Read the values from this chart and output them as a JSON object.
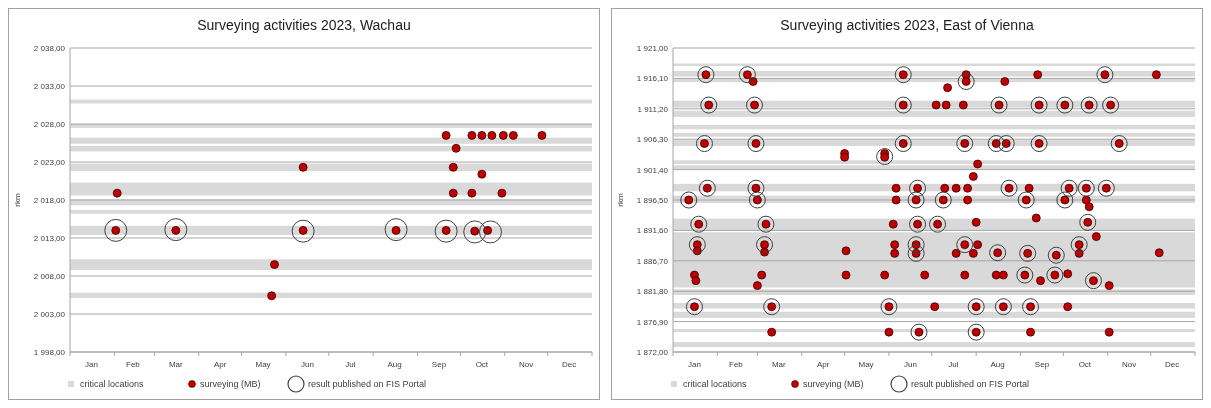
{
  "chart_data": [
    {
      "type": "scatter",
      "title": "Surveying activities 2023, Wachau",
      "ylabel": "rkm",
      "grid": "y",
      "legend": "bottom",
      "marker": "circle",
      "xlim": [
        "2023-01-01",
        "2024-01-01"
      ],
      "xticks": [
        {
          "value": "2023-01-01",
          "label": null
        },
        {
          "value": "2023-02-01",
          "label": null
        },
        {
          "value": "2023-03-01",
          "label": null
        },
        {
          "value": "2023-04-01",
          "label": null
        },
        {
          "value": "2023-05-01",
          "label": null
        },
        {
          "value": "2023-06-01",
          "label": null
        },
        {
          "value": "2023-07-01",
          "label": null
        },
        {
          "value": "2023-08-01",
          "label": null
        },
        {
          "value": "2023-09-01",
          "label": null
        },
        {
          "value": "2023-10-01",
          "label": null
        },
        {
          "value": "2023-11-01",
          "label": null
        },
        {
          "value": "2023-12-01",
          "label": null
        },
        {
          "value": "2024-01-01",
          "label": null
        },
        {
          "value": "2023-01-16",
          "label": "Jan"
        },
        {
          "value": "2023-02-14",
          "label": "Feb"
        },
        {
          "value": "2023-03-16",
          "label": "Mar"
        },
        {
          "value": "2023-04-16",
          "label": "Apr"
        },
        {
          "value": "2023-05-16",
          "label": "May"
        },
        {
          "value": "2023-06-16",
          "label": "Jun"
        },
        {
          "value": "2023-07-16",
          "label": "Jul"
        },
        {
          "value": "2023-08-16",
          "label": "Aug"
        },
        {
          "value": "2023-09-16",
          "label": "Sep"
        },
        {
          "value": "2023-10-16",
          "label": "Oct"
        },
        {
          "value": "2023-11-16",
          "label": "Nov"
        },
        {
          "value": "2023-12-16",
          "label": "Dec"
        }
      ],
      "ylim": [
        1998,
        2038
      ],
      "yticks": [
        {
          "value": 1998,
          "label": "1 998,00"
        },
        {
          "value": 2003,
          "label": "2 003,00"
        },
        {
          "value": 2008,
          "label": "2 008,00"
        },
        {
          "value": 2013,
          "label": "2 013,00"
        },
        {
          "value": 2018,
          "label": "2 018,00"
        },
        {
          "value": 2023,
          "label": "2 023,00"
        },
        {
          "value": 2028,
          "label": "2 028,00"
        },
        {
          "value": 2033,
          "label": "2 033,00"
        },
        {
          "value": 2038,
          "label": "2 038,00"
        }
      ],
      "bands": [
        {
          "axis": "y",
          "from": 2030.7,
          "to": 2031.2,
          "label": "critical locations",
          "color": "#d9d9d9"
        },
        {
          "axis": "y",
          "from": 2027.5,
          "to": 2028.0,
          "color": "#d9d9d9"
        },
        {
          "axis": "y",
          "from": 2025.4,
          "to": 2026.2,
          "color": "#d9d9d9"
        },
        {
          "axis": "y",
          "from": 2024.4,
          "to": 2025.1,
          "color": "#d9d9d9"
        },
        {
          "axis": "y",
          "from": 2021.8,
          "to": 2022.8,
          "color": "#d9d9d9"
        },
        {
          "axis": "y",
          "from": 2018.6,
          "to": 2020.3,
          "color": "#d9d9d9"
        },
        {
          "axis": "y",
          "from": 2017.3,
          "to": 2018.1,
          "color": "#d9d9d9"
        },
        {
          "axis": "y",
          "from": 2016.2,
          "to": 2016.7,
          "color": "#d9d9d9"
        },
        {
          "axis": "y",
          "from": 2013.4,
          "to": 2014.6,
          "color": "#d9d9d9"
        },
        {
          "axis": "y",
          "from": 2008.8,
          "to": 2010.2,
          "color": "#d9d9d9"
        },
        {
          "axis": "y",
          "from": 2005.1,
          "to": 2005.8,
          "color": "#d9d9d9"
        }
      ],
      "series": [
        {
          "name": "surveying (MB)",
          "color": "#c00000",
          "x": [
            "2023-02-03",
            "2023-02-02",
            "2023-03-16",
            "2023-05-24",
            "2023-05-22",
            "2023-06-13",
            "2023-06-13",
            "2023-08-17",
            "2023-09-21",
            "2023-09-21",
            "2023-09-28",
            "2023-09-26",
            "2023-09-26",
            "2023-10-09",
            "2023-10-11",
            "2023-10-16",
            "2023-10-16",
            "2023-10-09",
            "2023-10-20",
            "2023-10-23",
            "2023-10-31",
            "2023-10-30",
            "2023-11-07",
            "2023-11-27"
          ],
          "values": [
            2018.9,
            2014.0,
            2014.0,
            2009.5,
            2005.4,
            2022.3,
            2014.0,
            2014.0,
            2026.5,
            2014.0,
            2024.8,
            2022.3,
            2018.9,
            2026.5,
            2013.9,
            2026.5,
            2021.4,
            2018.9,
            2014.0,
            2026.5,
            2026.5,
            2018.9,
            2026.5,
            2026.5
          ]
        },
        {
          "name": "result published on FIS Portal",
          "color": "#404040",
          "x": [
            "2023-02-02",
            "2023-03-16",
            "2023-06-13",
            "2023-08-17",
            "2023-09-21",
            "2023-10-11",
            "2023-10-22"
          ],
          "values": [
            2014.0,
            2014.1,
            2013.9,
            2014.1,
            2013.9,
            2013.8,
            2013.8
          ]
        }
      ]
    },
    {
      "type": "scatter",
      "title": "Surveying activities 2023, East of Vienna",
      "ylabel": "rkm",
      "grid": "y",
      "legend": "bottom",
      "marker": "circle",
      "xlim": [
        "2023-01-01",
        "2024-01-01"
      ],
      "xticks": [
        {
          "value": "2023-01-01",
          "label": null
        },
        {
          "value": "2023-02-01",
          "label": null
        },
        {
          "value": "2023-03-01",
          "label": null
        },
        {
          "value": "2023-04-01",
          "label": null
        },
        {
          "value": "2023-05-01",
          "label": null
        },
        {
          "value": "2023-06-01",
          "label": null
        },
        {
          "value": "2023-07-01",
          "label": null
        },
        {
          "value": "2023-08-01",
          "label": null
        },
        {
          "value": "2023-09-01",
          "label": null
        },
        {
          "value": "2023-10-01",
          "label": null
        },
        {
          "value": "2023-11-01",
          "label": null
        },
        {
          "value": "2023-12-01",
          "label": null
        },
        {
          "value": "2024-01-01",
          "label": null
        },
        {
          "value": "2023-01-16",
          "label": "Jan"
        },
        {
          "value": "2023-02-14",
          "label": "Feb"
        },
        {
          "value": "2023-03-16",
          "label": "Mar"
        },
        {
          "value": "2023-04-16",
          "label": "Apr"
        },
        {
          "value": "2023-05-16",
          "label": "May"
        },
        {
          "value": "2023-06-16",
          "label": "Jun"
        },
        {
          "value": "2023-07-16",
          "label": "Jul"
        },
        {
          "value": "2023-08-16",
          "label": "Aug"
        },
        {
          "value": "2023-09-16",
          "label": "Sep"
        },
        {
          "value": "2023-10-16",
          "label": "Oct"
        },
        {
          "value": "2023-11-16",
          "label": "Nov"
        },
        {
          "value": "2023-12-16",
          "label": "Dec"
        }
      ],
      "ylim": [
        1872,
        1921
      ],
      "yticks": [
        {
          "value": 1872,
          "label": "1 872,00"
        },
        {
          "value": 1876.9,
          "label": "1 876,90"
        },
        {
          "value": 1881.8,
          "label": "1 881,80"
        },
        {
          "value": 1886.7,
          "label": "1 886,70"
        },
        {
          "value": 1891.6,
          "label": "1 891,60"
        },
        {
          "value": 1896.5,
          "label": "1 896,50"
        },
        {
          "value": 1901.4,
          "label": "1 901,40"
        },
        {
          "value": 1906.3,
          "label": "1 906,30"
        },
        {
          "value": 1911.2,
          "label": "1 911,20"
        },
        {
          "value": 1916.1,
          "label": "1 916,10"
        },
        {
          "value": 1921,
          "label": "1 921,00"
        }
      ],
      "bands": [
        {
          "axis": "y",
          "from": 1918.1,
          "to": 1918.5,
          "label": "critical locations",
          "color": "#d9d9d9"
        },
        {
          "axis": "y",
          "from": 1916.4,
          "to": 1917.3,
          "color": "#d9d9d9"
        },
        {
          "axis": "y",
          "from": 1915.5,
          "to": 1916.1,
          "color": "#d9d9d9"
        },
        {
          "axis": "y",
          "from": 1911.4,
          "to": 1912.5,
          "color": "#d9d9d9"
        },
        {
          "axis": "y",
          "from": 1909.9,
          "to": 1910.9,
          "color": "#d9d9d9"
        },
        {
          "axis": "y",
          "from": 1907.9,
          "to": 1908.6,
          "color": "#d9d9d9"
        },
        {
          "axis": "y",
          "from": 1906.7,
          "to": 1907.3,
          "color": "#d9d9d9"
        },
        {
          "axis": "y",
          "from": 1905.2,
          "to": 1906.2,
          "color": "#d9d9d9"
        },
        {
          "axis": "y",
          "from": 1902.3,
          "to": 1902.9,
          "color": "#d9d9d9"
        },
        {
          "axis": "y",
          "from": 1901.5,
          "to": 1902.1,
          "color": "#d9d9d9"
        },
        {
          "axis": "y",
          "from": 1897.9,
          "to": 1899.1,
          "color": "#d9d9d9"
        },
        {
          "axis": "y",
          "from": 1896.0,
          "to": 1897.2,
          "color": "#d9d9d9"
        },
        {
          "axis": "y",
          "from": 1891.6,
          "to": 1893.5,
          "color": "#d9d9d9"
        },
        {
          "axis": "y",
          "from": 1882.4,
          "to": 1891.3,
          "color": "#d9d9d9"
        },
        {
          "axis": "y",
          "from": 1881.2,
          "to": 1882.1,
          "color": "#d9d9d9"
        },
        {
          "axis": "y",
          "from": 1879.0,
          "to": 1879.9,
          "color": "#d9d9d9"
        },
        {
          "axis": "y",
          "from": 1877.5,
          "to": 1878.5,
          "color": "#d9d9d9"
        },
        {
          "axis": "y",
          "from": 1875.2,
          "to": 1875.7,
          "color": "#d9d9d9"
        },
        {
          "axis": "y",
          "from": 1872.8,
          "to": 1873.6,
          "color": "#d9d9d9"
        }
      ],
      "series": [
        {
          "name": "surveying (MB)",
          "color": "#c00000",
          "x": [
            "2023-01-24",
            "2023-02-22",
            "2023-06-11",
            "2023-07-25",
            "2023-09-13",
            "2023-10-30",
            "2023-12-05",
            "2023-02-26",
            "2023-07-25",
            "2023-08-21",
            "2023-07-12",
            "2023-01-26",
            "2023-02-27",
            "2023-06-11",
            "2023-07-04",
            "2023-07-11",
            "2023-07-23",
            "2023-08-17",
            "2023-09-14",
            "2023-10-02",
            "2023-10-19",
            "2023-11-03",
            "2023-01-23",
            "2023-02-28",
            "2023-06-11",
            "2023-07-24",
            "2023-08-15",
            "2023-08-22",
            "2023-09-14",
            "2023-11-09",
            "2023-05-01",
            "2023-05-29",
            "2023-05-01",
            "2023-05-29",
            "2023-08-02",
            "2023-07-30",
            "2023-01-25",
            "2023-02-28",
            "2023-06-06",
            "2023-06-21",
            "2023-07-10",
            "2023-07-18",
            "2023-07-26",
            "2023-08-24",
            "2023-09-07",
            "2023-10-05",
            "2023-10-17",
            "2023-10-31",
            "2023-01-12",
            "2023-03-01",
            "2023-06-06",
            "2023-06-20",
            "2023-07-09",
            "2023-07-26",
            "2023-09-05",
            "2023-10-02",
            "2023-10-17",
            "2023-10-19",
            "2023-09-12",
            "2023-01-19",
            "2023-03-07",
            "2023-06-04",
            "2023-06-21",
            "2023-07-05",
            "2023-08-01",
            "2023-10-18",
            "2023-10-24",
            "2023-01-18",
            "2023-03-06",
            "2023-06-05",
            "2023-06-20",
            "2023-07-24",
            "2023-08-02",
            "2023-10-12",
            "2023-01-18",
            "2023-05-02",
            "2023-03-06",
            "2023-06-05",
            "2023-06-20",
            "2023-07-18",
            "2023-07-30",
            "2023-09-06",
            "2023-10-12",
            "2023-08-16",
            "2023-12-07",
            "2023-09-26",
            "2023-01-16",
            "2023-03-04",
            "2023-05-02",
            "2023-05-29",
            "2023-06-26",
            "2023-07-24",
            "2023-08-15",
            "2023-08-20",
            "2023-09-04",
            "2023-09-25",
            "2023-10-04",
            "2023-01-17",
            "2023-09-15",
            "2023-10-22",
            "2023-03-01",
            "2023-11-02",
            "2023-01-16",
            "2023-03-11",
            "2023-06-01",
            "2023-07-03",
            "2023-08-01",
            "2023-08-20",
            "2023-09-08",
            "2023-10-04",
            "2023-03-11",
            "2023-06-01",
            "2023-06-22",
            "2023-08-01",
            "2023-09-08",
            "2023-11-02"
          ],
          "values": [
            1916.7,
            1916.7,
            1916.7,
            1916.7,
            1916.7,
            1916.7,
            1916.7,
            1915.6,
            1915.6,
            1915.6,
            1914.6,
            1911.8,
            1911.8,
            1911.8,
            1911.8,
            1911.8,
            1911.8,
            1911.8,
            1911.8,
            1911.8,
            1911.8,
            1911.8,
            1905.6,
            1905.6,
            1905.6,
            1905.6,
            1905.6,
            1905.6,
            1905.6,
            1905.6,
            1904.0,
            1904.0,
            1903.4,
            1903.4,
            1902.3,
            1900.3,
            1898.4,
            1898.4,
            1898.4,
            1898.4,
            1898.4,
            1898.4,
            1898.4,
            1898.4,
            1898.4,
            1898.4,
            1898.4,
            1898.4,
            1896.5,
            1896.5,
            1896.5,
            1896.5,
            1896.5,
            1896.5,
            1896.5,
            1896.5,
            1896.5,
            1895.4,
            1893.6,
            1892.6,
            1892.6,
            1892.6,
            1892.6,
            1892.6,
            1892.9,
            1892.9,
            1890.6,
            1889.3,
            1889.3,
            1889.3,
            1889.3,
            1889.3,
            1889.3,
            1889.3,
            1888.3,
            1888.3,
            1888.1,
            1887.9,
            1887.9,
            1887.9,
            1887.9,
            1887.9,
            1887.9,
            1888.0,
            1888.0,
            1887.6,
            1884.4,
            1884.4,
            1884.4,
            1884.4,
            1884.4,
            1884.4,
            1884.4,
            1884.4,
            1884.4,
            1884.4,
            1884.6,
            1883.5,
            1883.5,
            1883.5,
            1882.7,
            1882.7,
            1879.3,
            1879.3,
            1879.3,
            1879.3,
            1879.3,
            1879.3,
            1879.3,
            1879.3,
            1875.2,
            1875.2,
            1875.2,
            1875.2,
            1875.2,
            1875.2
          ]
        },
        {
          "name": "result published on FIS Portal",
          "color": "#404040",
          "x": [
            "2023-01-24",
            "2023-02-22",
            "2023-06-11",
            "2023-10-30",
            "2023-07-25",
            "2023-01-26",
            "2023-02-27",
            "2023-06-11",
            "2023-08-17",
            "2023-09-14",
            "2023-10-02",
            "2023-10-19",
            "2023-11-03",
            "2023-01-23",
            "2023-02-28",
            "2023-06-11",
            "2023-07-24",
            "2023-08-15",
            "2023-08-22",
            "2023-09-14",
            "2023-11-09",
            "2023-05-29",
            "2023-01-25",
            "2023-02-28",
            "2023-06-21",
            "2023-08-24",
            "2023-10-05",
            "2023-10-17",
            "2023-10-31",
            "2023-01-12",
            "2023-03-01",
            "2023-06-20",
            "2023-07-09",
            "2023-09-05",
            "2023-10-02",
            "2023-01-19",
            "2023-03-07",
            "2023-06-21",
            "2023-07-05",
            "2023-10-18",
            "2023-01-18",
            "2023-03-06",
            "2023-06-20",
            "2023-07-24",
            "2023-10-12",
            "2023-06-20",
            "2023-09-06",
            "2023-08-16",
            "2023-09-26",
            "2023-09-04",
            "2023-09-25",
            "2023-10-22",
            "2023-01-16",
            "2023-03-11",
            "2023-06-01",
            "2023-08-01",
            "2023-08-20",
            "2023-09-08",
            "2023-06-22",
            "2023-08-01"
          ],
          "values": [
            1916.7,
            1916.7,
            1916.7,
            1916.7,
            1915.6,
            1911.8,
            1911.8,
            1911.8,
            1911.8,
            1911.8,
            1911.8,
            1911.8,
            1911.8,
            1905.6,
            1905.6,
            1905.6,
            1905.6,
            1905.6,
            1905.6,
            1905.6,
            1905.6,
            1903.5,
            1898.4,
            1898.4,
            1898.4,
            1898.4,
            1898.4,
            1898.4,
            1898.4,
            1896.5,
            1896.5,
            1896.5,
            1896.5,
            1896.5,
            1896.5,
            1892.6,
            1892.6,
            1892.6,
            1892.6,
            1892.9,
            1889.3,
            1889.3,
            1889.3,
            1889.3,
            1889.3,
            1887.9,
            1887.9,
            1888.0,
            1887.6,
            1884.4,
            1884.4,
            1883.5,
            1879.3,
            1879.3,
            1879.3,
            1879.3,
            1879.3,
            1879.3,
            1875.2,
            1875.2
          ]
        }
      ]
    }
  ]
}
